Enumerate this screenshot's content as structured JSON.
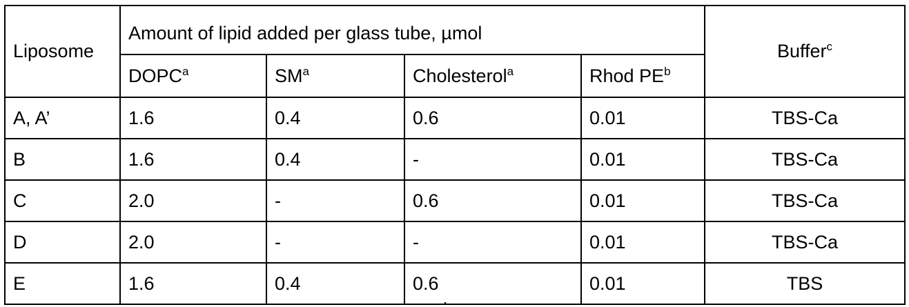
{
  "header": {
    "liposome": "Liposome",
    "group": "Amount of lipid added per glass tube, µmol",
    "buffer": "Buffer",
    "buffer_sup": "c",
    "columns": [
      {
        "label": "DOPC",
        "sup": "a"
      },
      {
        "label": "SM",
        "sup": "a"
      },
      {
        "label": "Cholesterol",
        "sup": "a"
      },
      {
        "label": "Rhod PE",
        "sup": "b"
      }
    ]
  },
  "rows": [
    {
      "liposome": "A, A’",
      "dopc": "1.6",
      "sm": "0.4",
      "cholesterol": "0.6",
      "rhod_pe": "0.01",
      "buffer": "TBS-Ca"
    },
    {
      "liposome": "B",
      "dopc": "1.6",
      "sm": "0.4",
      "cholesterol": "-",
      "rhod_pe": "0.01",
      "buffer": "TBS-Ca"
    },
    {
      "liposome": "C",
      "dopc": "2.0",
      "sm": "-",
      "cholesterol": "0.6",
      "rhod_pe": "0.01",
      "buffer": "TBS-Ca"
    },
    {
      "liposome": "D",
      "dopc": "2.0",
      "sm": "-",
      "cholesterol": "-",
      "rhod_pe": "0.01",
      "buffer": "TBS-Ca"
    },
    {
      "liposome": "E",
      "dopc": "1.6",
      "sm": "0.4",
      "cholesterol": "0.6",
      "rhod_pe": "0.01",
      "buffer": "TBS"
    }
  ]
}
